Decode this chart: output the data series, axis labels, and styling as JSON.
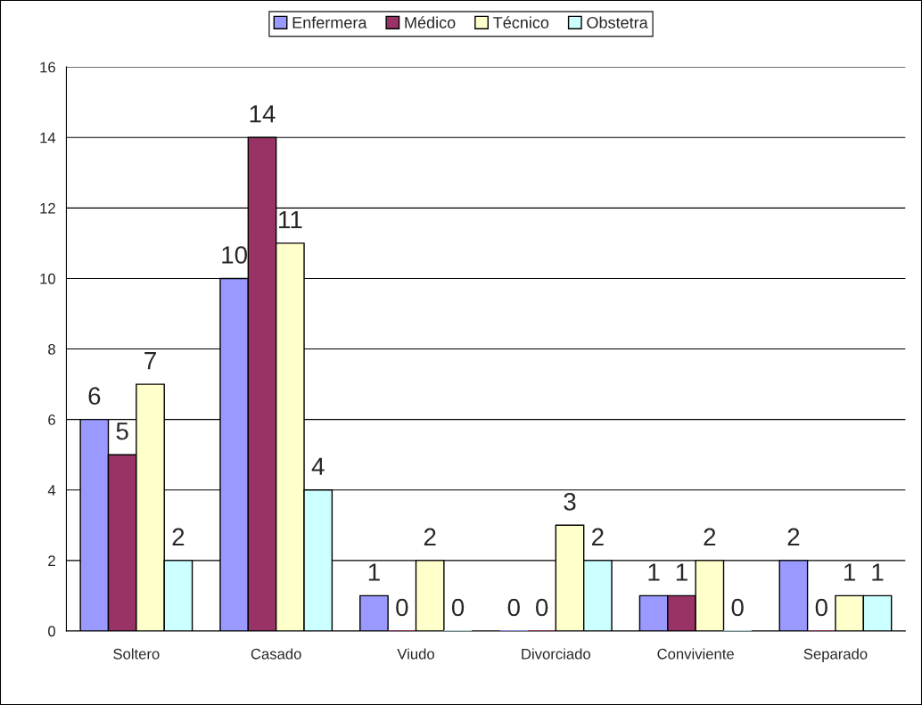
{
  "chart_data": {
    "type": "bar",
    "categories": [
      "Soltero",
      "Casado",
      "Viudo",
      "Divorciado",
      "Conviviente",
      "Separado"
    ],
    "series": [
      {
        "name": "Enfermera",
        "color": "#9999ff",
        "values": [
          6,
          10,
          1,
          0,
          1,
          2
        ]
      },
      {
        "name": "Médico",
        "color": "#993366",
        "values": [
          5,
          14,
          0,
          0,
          1,
          0
        ]
      },
      {
        "name": "Técnico",
        "color": "#ffffcc",
        "values": [
          7,
          11,
          2,
          3,
          2,
          1
        ]
      },
      {
        "name": "Obstetra",
        "color": "#ccffff",
        "values": [
          2,
          4,
          0,
          2,
          0,
          1
        ]
      }
    ],
    "ylim": [
      0,
      16
    ],
    "yticks": [
      0,
      2,
      4,
      6,
      8,
      10,
      12,
      14,
      16
    ],
    "grid": "y",
    "legend": "top",
    "data_labels": true
  }
}
